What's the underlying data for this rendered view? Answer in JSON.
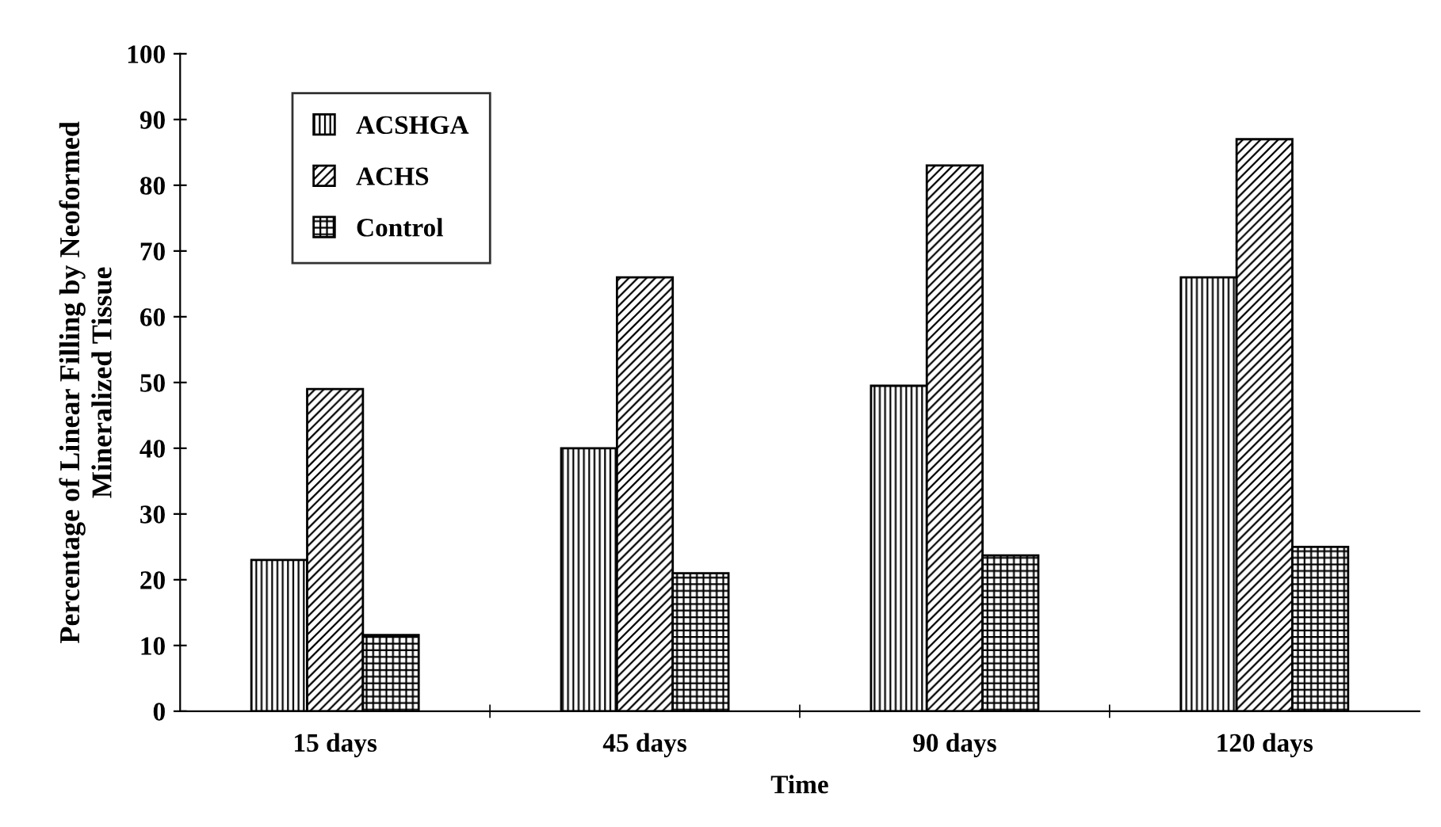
{
  "chart_data": {
    "type": "bar",
    "xlabel": "Time",
    "ylabel": "Percentage of Linear Filling by Neoformed\nMineralized Tissue",
    "categories": [
      "15 days",
      "45 days",
      "90 days",
      "120 days"
    ],
    "series": [
      {
        "name": "ACSHGA",
        "color": "#000000",
        "values": [
          23,
          40,
          49.5,
          66
        ]
      },
      {
        "name": "ACHS",
        "color": "#000000",
        "values": [
          49,
          66,
          83,
          87
        ]
      },
      {
        "name": "Control",
        "color": "#000000",
        "values": [
          11.6,
          21,
          23.7,
          25
        ]
      }
    ],
    "ylim": [
      0,
      100
    ],
    "yticks": [
      0,
      10,
      20,
      30,
      40,
      50,
      60,
      70,
      80,
      90,
      100
    ],
    "grid": false,
    "legend": "top left"
  }
}
